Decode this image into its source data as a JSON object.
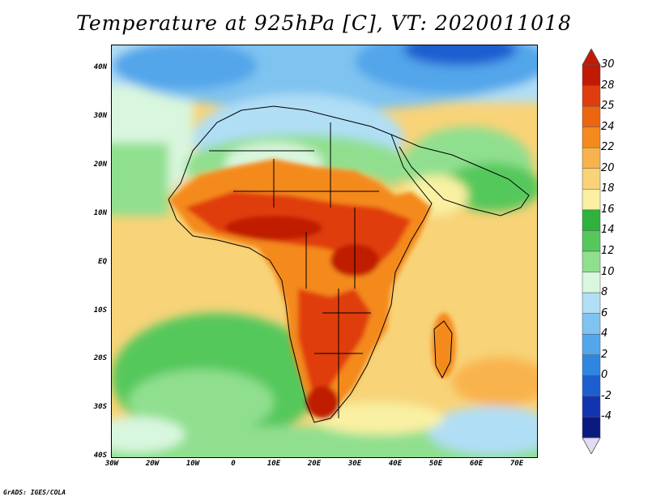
{
  "title": "Temperature at 925hPa [C], VT: 2020011018",
  "credit": "GrADS: IGES/COLA",
  "axes": {
    "lat_labels": [
      "40N",
      "30N",
      "20N",
      "10N",
      "EQ",
      "10S",
      "20S",
      "30S",
      "40S"
    ],
    "lon_labels": [
      "30W",
      "20W",
      "10W",
      "0",
      "10E",
      "20E",
      "30E",
      "40E",
      "50E",
      "60E",
      "70E"
    ]
  },
  "colorbar": {
    "labels": [
      "30",
      "28",
      "25",
      "24",
      "22",
      "20",
      "18",
      "16",
      "14",
      "12",
      "10",
      "8",
      "6",
      "4",
      "2",
      "0",
      "-2",
      "-4"
    ],
    "colors": [
      "#c01a05",
      "#e03d0e",
      "#ee6510",
      "#f48a1e",
      "#f9b34d",
      "#f8d378",
      "#f9f0a3",
      "#2fb13d",
      "#55c85b",
      "#90df8f",
      "#d9f6de",
      "#b0def5",
      "#7fc3f0",
      "#53a6ea",
      "#2f86e0",
      "#1d5fd0",
      "#1334b0",
      "#0a1a7e"
    ],
    "under_color": "#e4dcf6",
    "over_color": "#c01a05"
  },
  "colors": {
    "ocean_cool": "#ffd56a",
    "ocean_south_green": "#2fb13d",
    "land_hot": "#e23d10",
    "mediterranean": "#7fc3f0",
    "border": "#000000"
  }
}
